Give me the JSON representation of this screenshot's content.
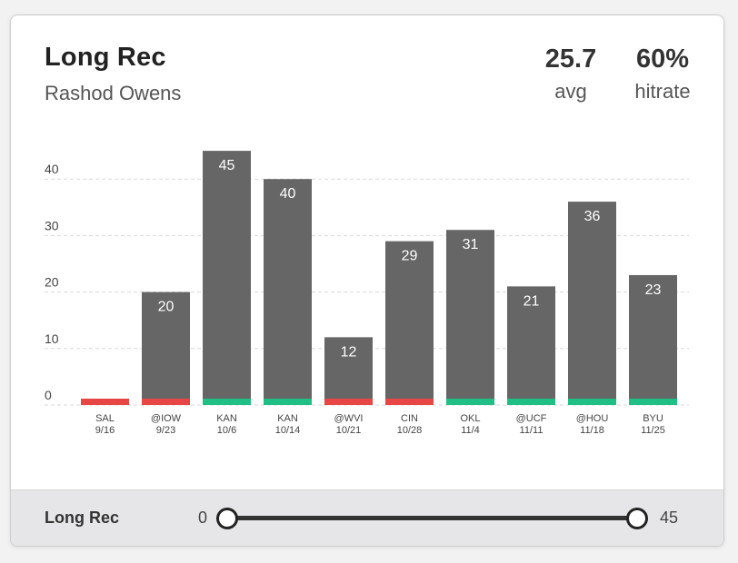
{
  "header": {
    "title": "Long Rec",
    "player": "Rashod Owens",
    "avg_value": "25.7",
    "avg_label": "avg",
    "hitrate_value": "60%",
    "hitrate_label": "hitrate"
  },
  "colors": {
    "bar": "#666666",
    "hit": "#1fbf86",
    "miss": "#e84545",
    "grid": "#d9d9d9"
  },
  "chart_data": {
    "type": "bar",
    "categories": [
      "SAL",
      "@IOW",
      "KAN",
      "KAN",
      "@WVI",
      "CIN",
      "OKL",
      "@UCF",
      "@HOU",
      "BYU"
    ],
    "dates": [
      "9/16",
      "9/23",
      "10/6",
      "10/14",
      "10/21",
      "10/28",
      "11/4",
      "11/11",
      "11/18",
      "11/25"
    ],
    "values": [
      0,
      20,
      45,
      40,
      12,
      29,
      31,
      21,
      36,
      23
    ],
    "data_labels": [
      "",
      "20",
      "45",
      "40",
      "12",
      "29",
      "31",
      "21",
      "36",
      "23"
    ],
    "outcomes": [
      "miss",
      "miss",
      "hit",
      "hit",
      "miss",
      "miss",
      "hit",
      "hit",
      "hit",
      "hit"
    ],
    "y_ticks": [
      0,
      10,
      20,
      30,
      40
    ],
    "ylim": [
      0,
      45
    ],
    "grid": true
  },
  "filter": {
    "label": "Long Rec",
    "min": "0",
    "max": "45",
    "range_min_fraction": 0,
    "range_max_fraction": 1
  }
}
